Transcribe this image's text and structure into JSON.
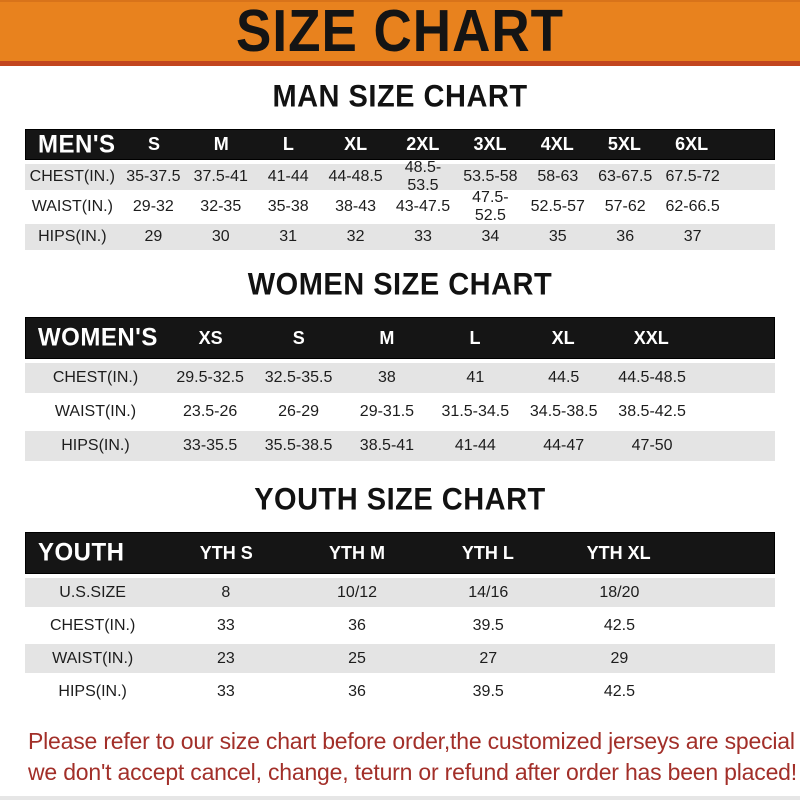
{
  "banner": {
    "title": "SIZE CHART"
  },
  "sections": [
    {
      "heading": "MAN SIZE CHART",
      "header_label": "MEN'S",
      "columns": [
        "S",
        "M",
        "L",
        "XL",
        "2XL",
        "3XL",
        "4XL",
        "5XL",
        "6XL"
      ],
      "rows": [
        {
          "label": "CHEST(IN.)",
          "values": [
            "35-37.5",
            "37.5-41",
            "41-44",
            "44-48.5",
            "48.5-53.5",
            "53.5-58",
            "58-63",
            "63-67.5",
            "67.5-72"
          ]
        },
        {
          "label": "WAIST(IN.)",
          "values": [
            "29-32",
            "32-35",
            "35-38",
            "38-43",
            "43-47.5",
            "47.5-52.5",
            "52.5-57",
            "57-62",
            "62-66.5"
          ]
        },
        {
          "label": "HIPS(IN.)",
          "values": [
            "29",
            "30",
            "31",
            "32",
            "33",
            "34",
            "35",
            "36",
            "37"
          ]
        }
      ]
    },
    {
      "heading": "WOMEN SIZE CHART",
      "header_label": "WOMEN'S",
      "columns": [
        "XS",
        "S",
        "M",
        "L",
        "XL",
        "XXL"
      ],
      "rows": [
        {
          "label": "CHEST(IN.)",
          "values": [
            "29.5-32.5",
            "32.5-35.5",
            "38",
            "41",
            "44.5",
            "44.5-48.5"
          ]
        },
        {
          "label": "WAIST(IN.)",
          "values": [
            "23.5-26",
            "26-29",
            "29-31.5",
            "31.5-34.5",
            "34.5-38.5",
            "38.5-42.5"
          ]
        },
        {
          "label": "HIPS(IN.)",
          "values": [
            "33-35.5",
            "35.5-38.5",
            "38.5-41",
            "41-44",
            "44-47",
            "47-50"
          ]
        }
      ]
    },
    {
      "heading": "YOUTH SIZE CHART",
      "header_label": "YOUTH",
      "columns": [
        "YTH S",
        "YTH M",
        "YTH L",
        "YTH XL"
      ],
      "rows": [
        {
          "label": "U.S.SIZE",
          "values": [
            "8",
            "10/12",
            "14/16",
            "18/20"
          ]
        },
        {
          "label": "CHEST(IN.)",
          "values": [
            "33",
            "36",
            "39.5",
            "42.5"
          ]
        },
        {
          "label": "WAIST(IN.)",
          "values": [
            "23",
            "25",
            "27",
            "29"
          ]
        },
        {
          "label": "HIPS(IN.)",
          "values": [
            "33",
            "36",
            "39.5",
            "42.5"
          ]
        }
      ]
    }
  ],
  "footer": {
    "line1": "Please refer to our size chart before order,the customized jerseys are special products,",
    "line2": "we don't accept cancel, change, teturn or refund after order has been placed!"
  },
  "colors": {
    "banner_orange": "#E8821E",
    "banner_orange_dark": "#D8731A",
    "banner_orange_edge": "#C2451F",
    "header_bar_black": "#151515",
    "row_shade_gray": "#E4E4E4",
    "notice_red": "#A22F29"
  }
}
